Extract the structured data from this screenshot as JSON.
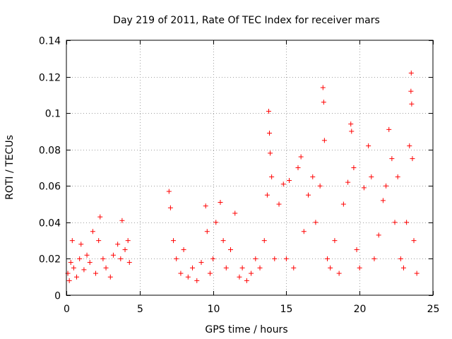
{
  "chart_data": {
    "type": "scatter",
    "title": "Day 219 of 2011, Rate Of TEC Index for receiver mars",
    "xlabel": "GPS time / hours",
    "ylabel": "ROTI / TECUs",
    "xlim": [
      0,
      25
    ],
    "ylim": [
      0,
      0.14
    ],
    "xticks": [
      0,
      5,
      10,
      15,
      20,
      25
    ],
    "xtick_labels": [
      "0",
      "5",
      "10",
      "15",
      "20",
      "25"
    ],
    "yticks": [
      0,
      0.02,
      0.04,
      0.06,
      0.08,
      0.1,
      0.12,
      0.14
    ],
    "ytick_labels": [
      "0",
      "0.02",
      "0.04",
      "0.06",
      "0.08",
      "0.1",
      "0.12",
      "0.14"
    ],
    "grid": true,
    "legend": "none",
    "marker": "plus",
    "color": "#ff0000",
    "points": [
      [
        0.1,
        0.012
      ],
      [
        0.2,
        0.008
      ],
      [
        0.3,
        0.018
      ],
      [
        0.4,
        0.03
      ],
      [
        0.5,
        0.015
      ],
      [
        0.7,
        0.01
      ],
      [
        0.9,
        0.02
      ],
      [
        1.0,
        0.028
      ],
      [
        1.2,
        0.014
      ],
      [
        1.4,
        0.022
      ],
      [
        1.6,
        0.018
      ],
      [
        1.8,
        0.035
      ],
      [
        2.0,
        0.012
      ],
      [
        2.2,
        0.03
      ],
      [
        2.3,
        0.043
      ],
      [
        2.5,
        0.02
      ],
      [
        2.7,
        0.015
      ],
      [
        3.0,
        0.01
      ],
      [
        3.2,
        0.022
      ],
      [
        3.5,
        0.028
      ],
      [
        3.7,
        0.02
      ],
      [
        3.8,
        0.041
      ],
      [
        4.0,
        0.025
      ],
      [
        4.2,
        0.03
      ],
      [
        4.3,
        0.018
      ],
      [
        7.0,
        0.057
      ],
      [
        7.1,
        0.048
      ],
      [
        7.3,
        0.03
      ],
      [
        7.5,
        0.02
      ],
      [
        7.8,
        0.012
      ],
      [
        8.0,
        0.025
      ],
      [
        8.3,
        0.01
      ],
      [
        8.6,
        0.015
      ],
      [
        8.9,
        0.008
      ],
      [
        9.2,
        0.018
      ],
      [
        9.5,
        0.049
      ],
      [
        9.6,
        0.035
      ],
      [
        9.8,
        0.012
      ],
      [
        10.0,
        0.02
      ],
      [
        10.2,
        0.04
      ],
      [
        10.5,
        0.051
      ],
      [
        10.7,
        0.03
      ],
      [
        10.9,
        0.015
      ],
      [
        11.2,
        0.025
      ],
      [
        11.5,
        0.045
      ],
      [
        11.8,
        0.01
      ],
      [
        12.0,
        0.015
      ],
      [
        12.3,
        0.008
      ],
      [
        12.6,
        0.012
      ],
      [
        12.9,
        0.02
      ],
      [
        13.2,
        0.015
      ],
      [
        13.5,
        0.03
      ],
      [
        13.7,
        0.055
      ],
      [
        13.8,
        0.101
      ],
      [
        13.85,
        0.089
      ],
      [
        13.9,
        0.078
      ],
      [
        14.0,
        0.065
      ],
      [
        14.2,
        0.02
      ],
      [
        14.5,
        0.05
      ],
      [
        14.8,
        0.061
      ],
      [
        15.0,
        0.02
      ],
      [
        15.2,
        0.063
      ],
      [
        15.5,
        0.015
      ],
      [
        15.8,
        0.07
      ],
      [
        16.0,
        0.076
      ],
      [
        16.2,
        0.035
      ],
      [
        16.5,
        0.055
      ],
      [
        16.8,
        0.065
      ],
      [
        17.0,
        0.04
      ],
      [
        17.3,
        0.06
      ],
      [
        17.5,
        0.114
      ],
      [
        17.55,
        0.106
      ],
      [
        17.6,
        0.085
      ],
      [
        17.8,
        0.02
      ],
      [
        18.0,
        0.015
      ],
      [
        18.3,
        0.03
      ],
      [
        18.6,
        0.012
      ],
      [
        18.9,
        0.05
      ],
      [
        19.2,
        0.062
      ],
      [
        19.4,
        0.094
      ],
      [
        19.45,
        0.09
      ],
      [
        19.6,
        0.07
      ],
      [
        19.8,
        0.025
      ],
      [
        20.0,
        0.015
      ],
      [
        20.3,
        0.059
      ],
      [
        20.6,
        0.082
      ],
      [
        20.8,
        0.065
      ],
      [
        21.0,
        0.02
      ],
      [
        21.3,
        0.033
      ],
      [
        21.6,
        0.052
      ],
      [
        21.8,
        0.06
      ],
      [
        22.0,
        0.091
      ],
      [
        22.2,
        0.075
      ],
      [
        22.4,
        0.04
      ],
      [
        22.6,
        0.065
      ],
      [
        22.8,
        0.02
      ],
      [
        23.0,
        0.015
      ],
      [
        23.2,
        0.04
      ],
      [
        23.4,
        0.082
      ],
      [
        23.5,
        0.112
      ],
      [
        23.52,
        0.122
      ],
      [
        23.55,
        0.105
      ],
      [
        23.6,
        0.075
      ],
      [
        23.7,
        0.03
      ],
      [
        23.9,
        0.012
      ]
    ]
  }
}
